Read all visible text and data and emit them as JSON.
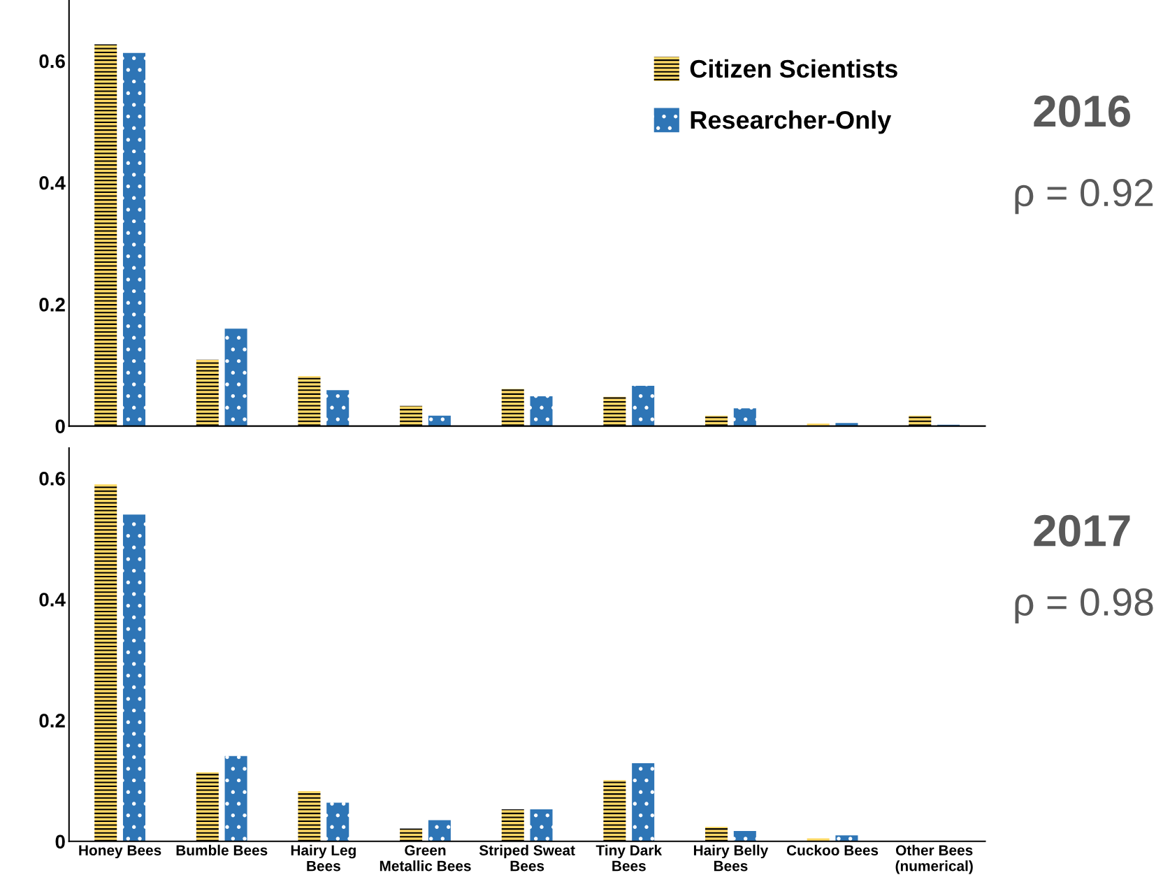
{
  "chart_data": [
    {
      "type": "bar",
      "categories": [
        null,
        null,
        null,
        null,
        null,
        null,
        null,
        null,
        null
      ],
      "series": [
        {
          "name": "Citizen Scientists",
          "color": "#ffd966",
          "values": [
            0.627,
            0.109,
            0.082,
            0.033,
            0.061,
            0.048,
            0.017,
            0.004,
            0.017
          ]
        },
        {
          "name": "Researcher-Only",
          "color": "#2e75b6",
          "values": [
            0.613,
            0.16,
            0.059,
            0.017,
            0.049,
            0.066,
            0.029,
            0.005,
            0.002
          ]
        }
      ],
      "ylim": [
        0,
        0.7
      ],
      "yticks": [
        0,
        0.2,
        0.4,
        0.6
      ],
      "tick_labels": "y",
      "grid": false,
      "legend": "top right",
      "annotations": [
        "2016",
        "ρ = 0.92"
      ]
    },
    {
      "type": "bar",
      "categories": [
        "Honey Bees",
        "Bumble Bees",
        "Hairy Leg Bees",
        "Green Metallic Bees",
        "Striped Sweat Bees",
        "Tiny Dark Bees",
        "Hairy Belly Bees",
        "Cuckoo Bees",
        "Other Bees (numerical)"
      ],
      "series": [
        {
          "color": "#ffd966",
          "values": [
            0.59,
            0.114,
            0.083,
            0.021,
            0.053,
            0.101,
            0.024,
            0.005,
            0
          ]
        },
        {
          "color": "#2e75b6",
          "values": [
            0.54,
            0.141,
            0.064,
            0.035,
            0.053,
            0.129,
            0.017,
            0.01,
            0
          ]
        }
      ],
      "ylim": [
        0,
        0.65
      ],
      "yticks": [
        0,
        0.2,
        0.4,
        0.6
      ],
      "grid": false,
      "legend": false,
      "annotations": [
        "2017",
        "ρ = 0.98"
      ]
    }
  ]
}
